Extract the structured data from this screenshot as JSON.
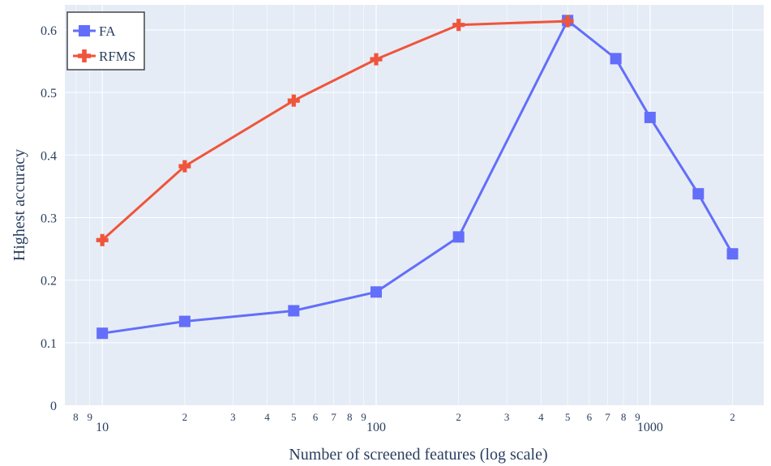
{
  "chart_data": {
    "type": "line",
    "xlabel": "Number of screened features (log scale)",
    "ylabel": "Highest accuracy",
    "x_scale": "log",
    "xlim": [
      7.3,
      2600
    ],
    "ylim": [
      0,
      0.64
    ],
    "grid": true,
    "legend_position": "top-left",
    "y_ticks": [
      {
        "value": 0,
        "label": "0"
      },
      {
        "value": 0.1,
        "label": "0.1"
      },
      {
        "value": 0.2,
        "label": "0.2"
      },
      {
        "value": 0.3,
        "label": "0.3"
      },
      {
        "value": 0.4,
        "label": "0.4"
      },
      {
        "value": 0.5,
        "label": "0.5"
      },
      {
        "value": 0.6,
        "label": "0.6"
      }
    ],
    "x_ticks": [
      {
        "value": 8,
        "label": "8",
        "major": false
      },
      {
        "value": 9,
        "label": "9",
        "major": false
      },
      {
        "value": 10,
        "label": "10",
        "major": true
      },
      {
        "value": 20,
        "label": "2",
        "major": false
      },
      {
        "value": 30,
        "label": "3",
        "major": false
      },
      {
        "value": 40,
        "label": "4",
        "major": false
      },
      {
        "value": 50,
        "label": "5",
        "major": false
      },
      {
        "value": 60,
        "label": "6",
        "major": false
      },
      {
        "value": 70,
        "label": "7",
        "major": false
      },
      {
        "value": 80,
        "label": "8",
        "major": false
      },
      {
        "value": 90,
        "label": "9",
        "major": false
      },
      {
        "value": 100,
        "label": "100",
        "major": true
      },
      {
        "value": 200,
        "label": "2",
        "major": false
      },
      {
        "value": 300,
        "label": "3",
        "major": false
      },
      {
        "value": 400,
        "label": "4",
        "major": false
      },
      {
        "value": 500,
        "label": "5",
        "major": false
      },
      {
        "value": 600,
        "label": "6",
        "major": false
      },
      {
        "value": 700,
        "label": "7",
        "major": false
      },
      {
        "value": 800,
        "label": "8",
        "major": false
      },
      {
        "value": 900,
        "label": "9",
        "major": false
      },
      {
        "value": 1000,
        "label": "1000",
        "major": true
      },
      {
        "value": 2000,
        "label": "2",
        "major": false
      }
    ],
    "series": [
      {
        "name": "FA",
        "color": "#636efa",
        "marker": "square",
        "x": [
          10,
          20,
          50,
          100,
          200,
          500,
          750,
          1000,
          1500,
          2000
        ],
        "y": [
          0.115,
          0.134,
          0.151,
          0.181,
          0.269,
          0.615,
          0.554,
          0.46,
          0.338,
          0.242
        ]
      },
      {
        "name": "RFMS",
        "color": "#ef553b",
        "marker": "cross",
        "x": [
          10,
          20,
          50,
          100,
          200,
          500
        ],
        "y": [
          0.264,
          0.382,
          0.487,
          0.553,
          0.608,
          0.614
        ]
      }
    ]
  },
  "colors": {
    "plot_background": "#e5ecf6",
    "grid": "#ffffff",
    "text": "#2a3f5f"
  }
}
